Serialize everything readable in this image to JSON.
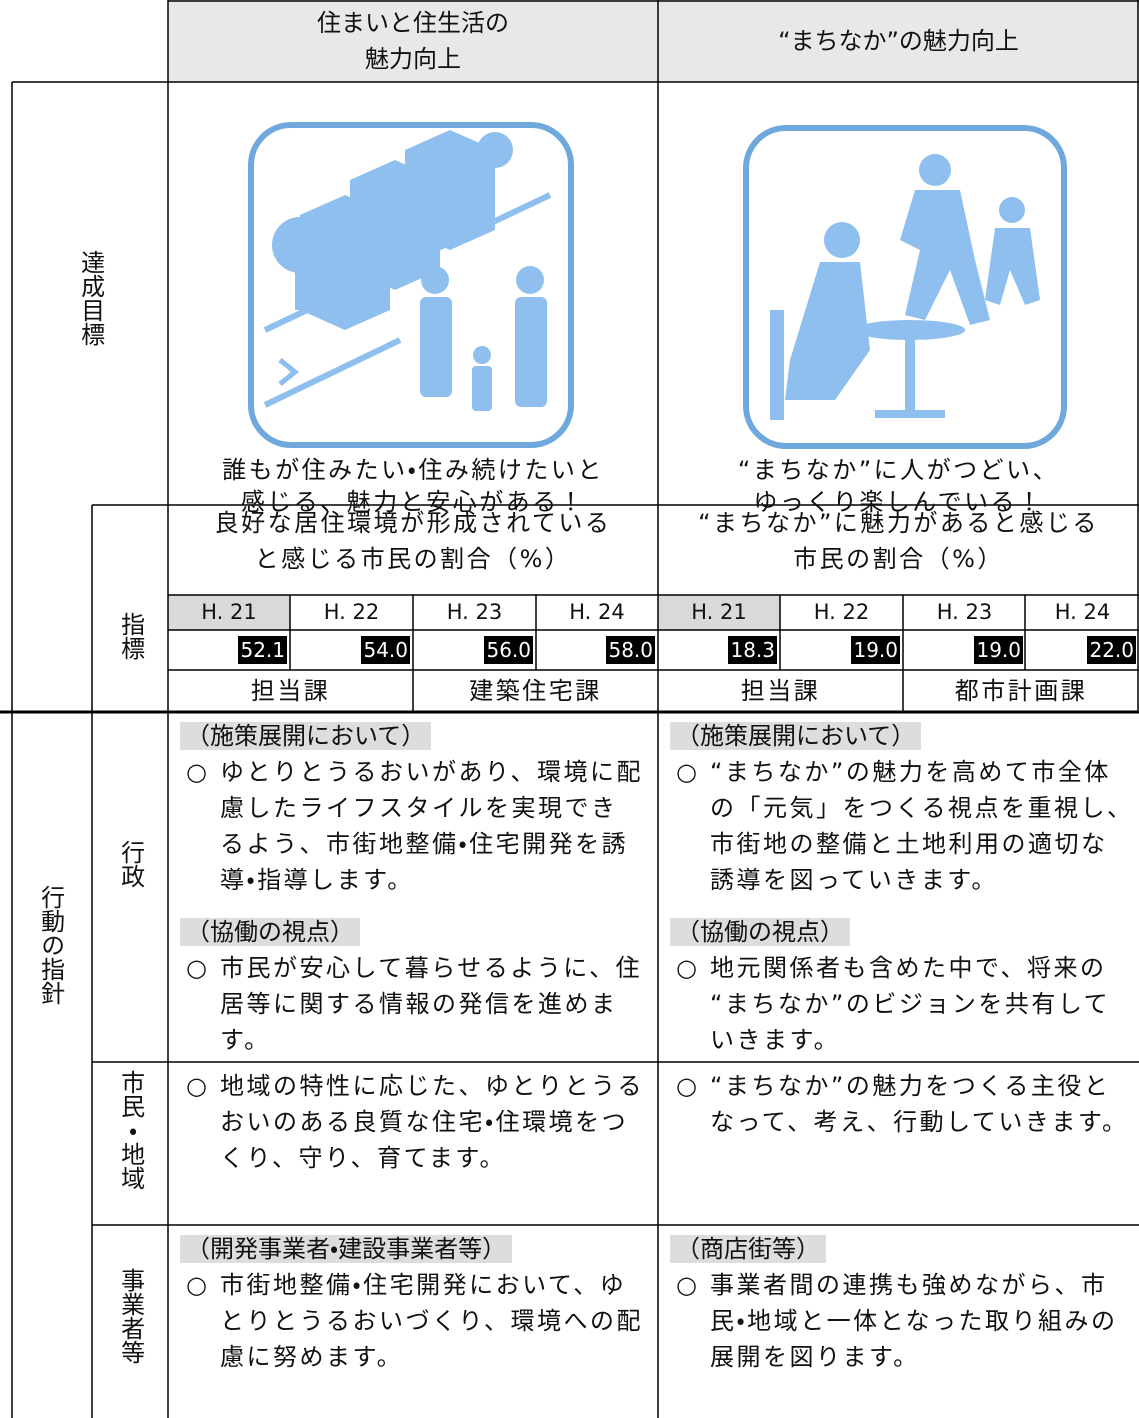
{
  "row_labels": {
    "goal": "達成目標",
    "indicator": "指標",
    "actions": "行動の指針",
    "government": "行政",
    "citizens": "市民・地域",
    "business": "事業者等"
  },
  "columns": [
    {
      "title": [
        "住まいと住生活の",
        "魅力向上"
      ],
      "goal": [
        "誰もが住みたい・住み続けたいと",
        "感じる、魅力と安心がある！"
      ],
      "indicator": {
        "title": [
          "良好な居住環境が形成されている",
          "と感じる市民の割合（%）"
        ],
        "years": [
          "H. 21",
          "H. 22",
          "H. 23",
          "H. 24"
        ],
        "values": [
          "52.1",
          "54.0",
          "56.0",
          "58.0"
        ],
        "department_label": "担当課",
        "department": "建築住宅課"
      },
      "government": [
        {
          "heading": "（施策展開において）",
          "bullet": "○",
          "lines": [
            "ゆとりとうるおいがあり、環境に配",
            "慮したライフスタイルを実現でき",
            "るよう、市街地整備・住宅開発を誘",
            "導・指導します。"
          ]
        },
        {
          "heading": "（協働の視点）",
          "bullet": "○",
          "lines": [
            "市民が安心して暮らせるように、住",
            "居等に関する情報の発信を進めま",
            "す。"
          ]
        }
      ],
      "citizens": [
        {
          "bullet": "○",
          "lines": [
            "地域の特性に応じた、ゆとりとうる",
            "おいのある良質な住宅・住環境をつ",
            "くり、守り、育てます。"
          ]
        }
      ],
      "business": [
        {
          "heading": "（開発事業者・建設事業者等）",
          "bullet": "○",
          "lines": [
            "市街地整備・住宅開発において、ゆ",
            "とりとうるおいづくり、環境への配",
            "慮に努めます。"
          ]
        }
      ]
    },
    {
      "title": [
        "“まちなか”の魅力向上"
      ],
      "goal": [
        "“まちなか”に人がつどい、",
        "ゆっくり楽しんでいる！"
      ],
      "indicator": {
        "title": [
          "“まちなか”に魅力があると感じる",
          "市民の割合（%）"
        ],
        "years": [
          "H. 21",
          "H. 22",
          "H. 23",
          "H. 24"
        ],
        "values": [
          "18.3",
          "19.0",
          "19.0",
          "22.0"
        ],
        "department_label": "担当課",
        "department": "都市計画課"
      },
      "government": [
        {
          "heading": "（施策展開において）",
          "bullet": "○",
          "lines": [
            "“まちなか”の魅力を高めて市全体",
            "の「元気」をつくる視点を重視し、",
            "市街地の整備と土地利用の適切な",
            "誘導を図っていきます。"
          ]
        },
        {
          "heading": "（協働の視点）",
          "bullet": "○",
          "lines": [
            "地元関係者も含めた中で、将来の",
            "“まちなか”のビジョンを共有して",
            "いきます。"
          ]
        }
      ],
      "citizens": [
        {
          "bullet": "○",
          "lines": [
            "“まちなか”の魅力をつくる主役と",
            "なって、考え、行動していきます。"
          ]
        }
      ],
      "business": [
        {
          "heading": "（商店街等）",
          "bullet": "○",
          "lines": [
            "事業者間の連携も強めながら、市",
            "民・地域と一体となった取り組みの",
            "展開を図ります。"
          ]
        }
      ]
    }
  ]
}
